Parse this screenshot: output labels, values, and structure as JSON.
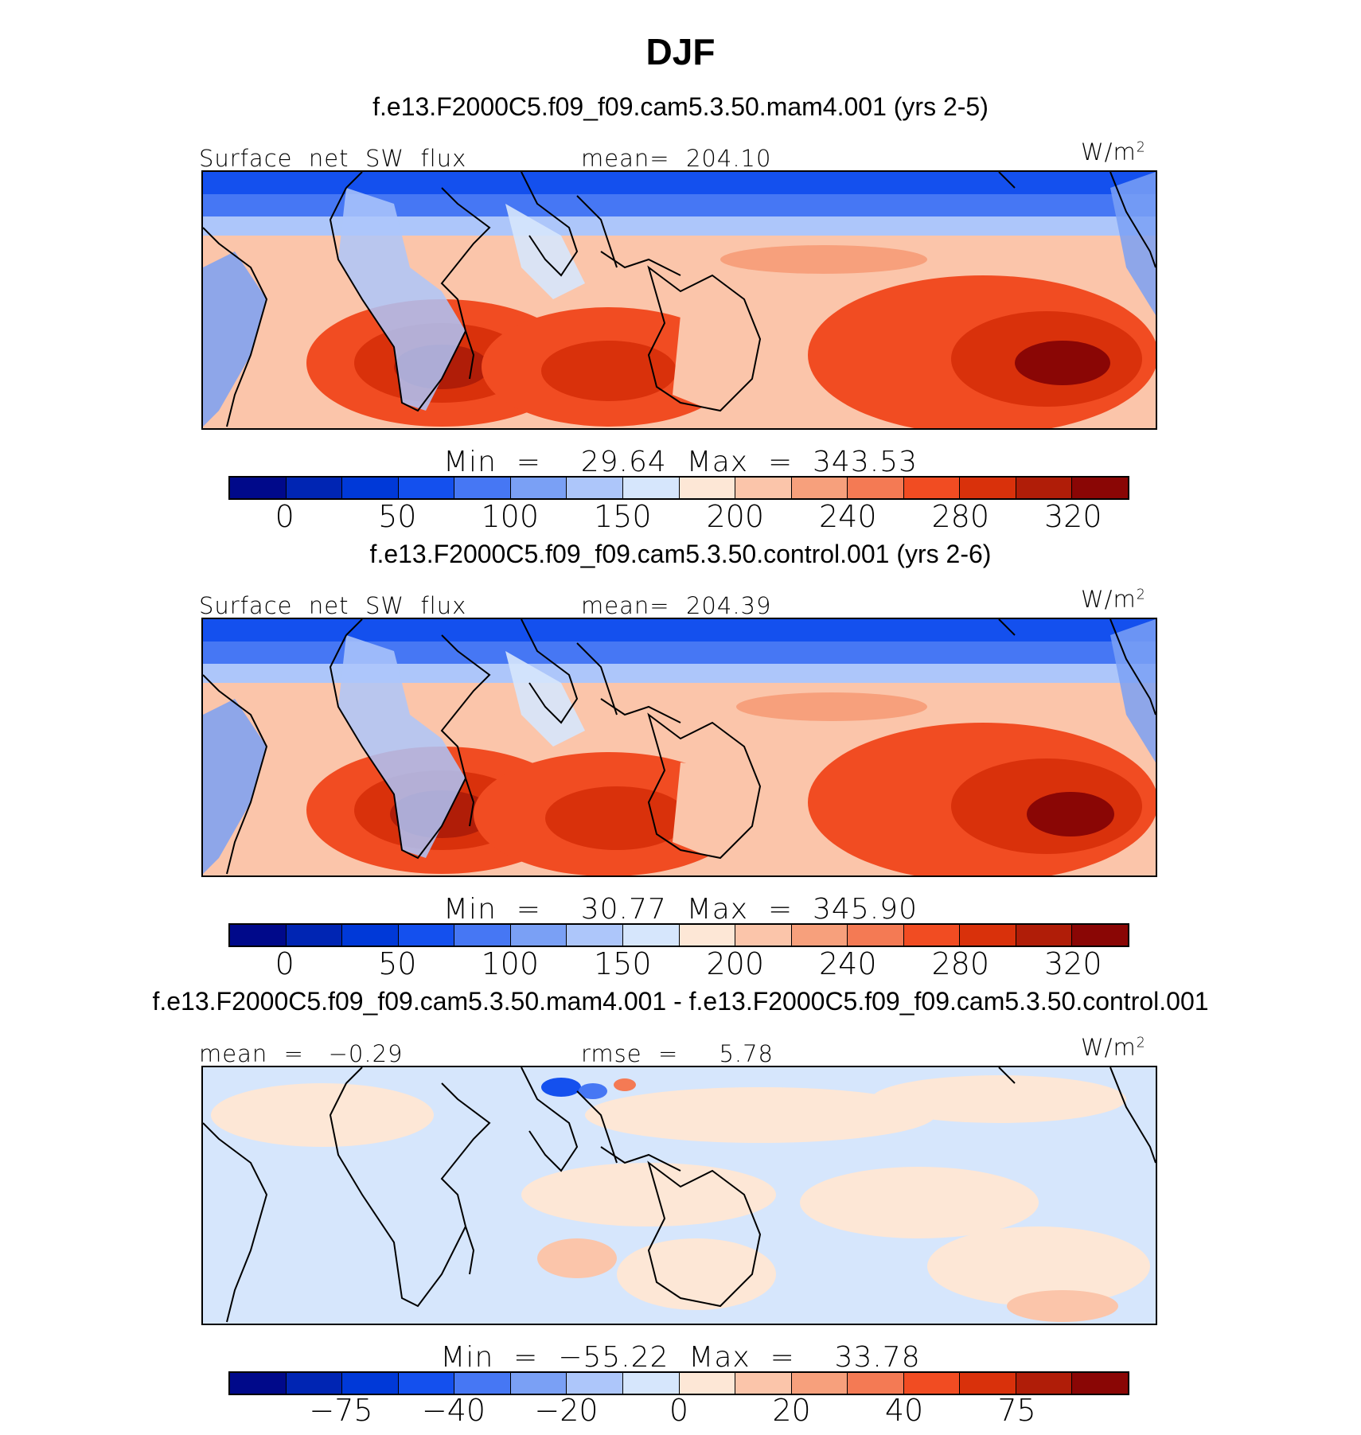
{
  "title": "DJF",
  "panels": [
    {
      "case": "f.e13.F2000C5.f09_f09.cam5.3.50.mam4.001 (yrs 2-5)",
      "left_label": "Surface  net  SW  flux",
      "center_label": "mean=  204.10",
      "units": "W/m",
      "units_sup": "2",
      "minmax": "Min  =    29.64  Max  =  343.53",
      "ticks": [
        "0",
        "50",
        "100",
        "150",
        "200",
        "240",
        "280",
        "320"
      ],
      "colors": [
        "#00098a",
        "#0025b3",
        "#0039d8",
        "#1450ee",
        "#4677f4",
        "#7aa0f5",
        "#adc6fa",
        "#d6e6fc",
        "#fde7d6",
        "#fbc5aa",
        "#f7a07c",
        "#f47a54",
        "#f14c22",
        "#d9310b",
        "#b01d08",
        "#8a0605"
      ]
    },
    {
      "case": "f.e13.F2000C5.f09_f09.cam5.3.50.control.001 (yrs 2-6)",
      "left_label": "Surface  net  SW  flux",
      "center_label": "mean=  204.39",
      "units": "W/m",
      "units_sup": "2",
      "minmax": "Min  =    30.77  Max  =  345.90",
      "ticks": [
        "0",
        "50",
        "100",
        "150",
        "200",
        "240",
        "280",
        "320"
      ],
      "colors": [
        "#00098a",
        "#0025b3",
        "#0039d8",
        "#1450ee",
        "#4677f4",
        "#7aa0f5",
        "#adc6fa",
        "#d6e6fc",
        "#fde7d6",
        "#fbc5aa",
        "#f7a07c",
        "#f47a54",
        "#f14c22",
        "#d9310b",
        "#b01d08",
        "#8a0605"
      ]
    },
    {
      "case": "f.e13.F2000C5.f09_f09.cam5.3.50.mam4.001 - f.e13.F2000C5.f09_f09.cam5.3.50.control.001",
      "left_label": "mean  =   −0.29",
      "center_label": "rmse  =     5.78",
      "units": "W/m",
      "units_sup": "2",
      "minmax": "Min  =  −55.22  Max  =    33.78",
      "ticks": [
        "−75",
        "−40",
        "−20",
        "0",
        "20",
        "40",
        "75"
      ],
      "colors": [
        "#00098a",
        "#0025b3",
        "#0039d8",
        "#1450ee",
        "#4677f4",
        "#7aa0f5",
        "#adc6fa",
        "#d6e6fc",
        "#fde7d6",
        "#fbc5aa",
        "#f7a07c",
        "#f47a54",
        "#f14c22",
        "#d9310b",
        "#b01d08",
        "#8a0605"
      ]
    }
  ]
}
